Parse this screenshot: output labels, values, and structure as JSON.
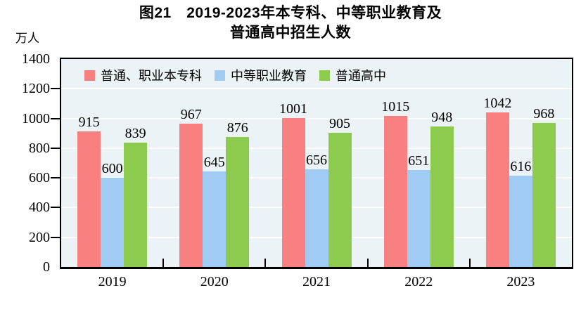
{
  "title": {
    "line1": "图21　2019-2023年本专科、中等职业教育及",
    "line2": "普通高中招生人数"
  },
  "y_axis": {
    "unit_label": "万人",
    "tick_labels": [
      "0",
      "200",
      "400",
      "600",
      "800",
      "1000",
      "1200",
      "1400"
    ]
  },
  "colors": {
    "plot_background": "#ECF3F6",
    "gridline": "#FFFFFF",
    "axis": "#000000",
    "series_red": "#F88080",
    "series_blue": "#9FCBF5",
    "series_green": "#8DCB4E"
  },
  "chart_data": {
    "type": "bar",
    "title": "图21　2019-2023年本专科、中等职业教育及普通高中招生人数",
    "ylabel": "万人",
    "xlabel": "",
    "categories": [
      "2019",
      "2020",
      "2021",
      "2022",
      "2023"
    ],
    "series": [
      {
        "name": "普通、职业本专科",
        "color": "#F88080",
        "values": [
          915,
          967,
          1001,
          1015,
          1042
        ]
      },
      {
        "name": "中等职业教育",
        "color": "#9FCBF5",
        "values": [
          600,
          645,
          656,
          651,
          616
        ]
      },
      {
        "name": "普通高中",
        "color": "#8DCB4E",
        "values": [
          839,
          876,
          905,
          948,
          968
        ]
      }
    ],
    "ylim": [
      0,
      1400
    ],
    "yticks": [
      0,
      200,
      400,
      600,
      800,
      1000,
      1200,
      1400
    ],
    "grid": true,
    "grid_interval": 200,
    "legend_position": "top-left-inside",
    "data_labels": true
  }
}
